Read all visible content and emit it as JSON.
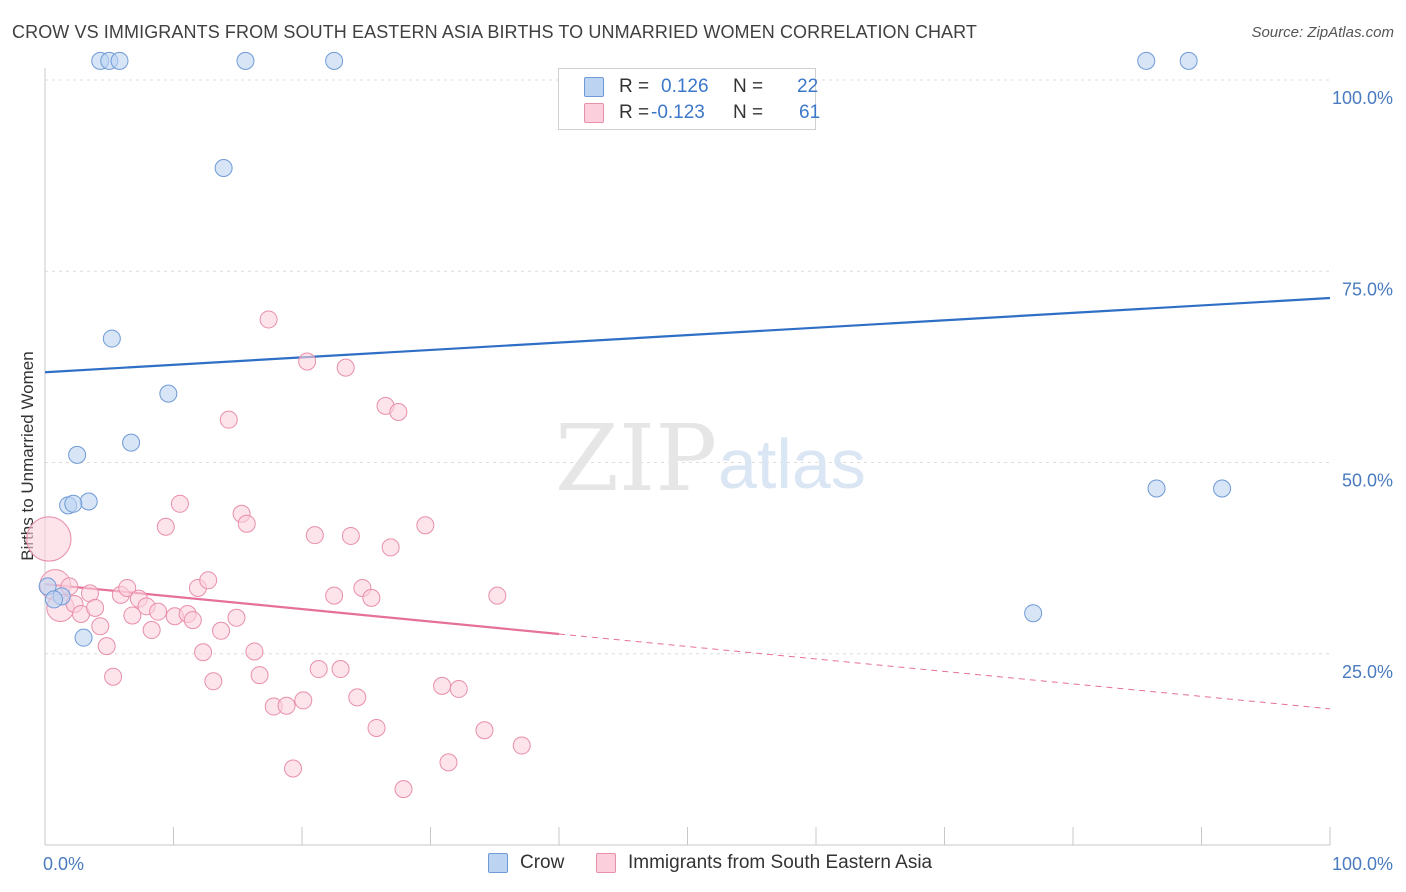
{
  "header": {
    "title": "CROW VS IMMIGRANTS FROM SOUTH EASTERN ASIA BIRTHS TO UNMARRIED WOMEN CORRELATION CHART",
    "source": "Source: ZipAtlas.com"
  },
  "watermark": {
    "zip": "ZIP",
    "atlas": "atlas"
  },
  "stats": {
    "rows": [
      {
        "r_label": "R =",
        "r_value": "0.126",
        "n_label": "N =",
        "n_value": "22"
      },
      {
        "r_label": "R =",
        "r_value": "-0.123",
        "n_label": "N =",
        "n_value": "61"
      }
    ]
  },
  "legend": {
    "crow": "Crow",
    "immigrants": "Immigrants from South Eastern Asia"
  },
  "colors": {
    "crow_fill": "#bcd3f2",
    "crow_stroke": "#6f9ad6",
    "crow_line": "#2f6fc6",
    "imm_fill": "#fbd0dc",
    "imm_stroke": "#e88faa",
    "imm_line": "#e5709a",
    "grid": "#dcdcdc",
    "tick_text": "#4a7bbf"
  },
  "chart_data": {
    "type": "scatter",
    "title": "CROW VS IMMIGRANTS FROM SOUTH EASTERN ASIA BIRTHS TO UNMARRIED WOMEN CORRELATION CHART",
    "xlabel": "",
    "ylabel": "Births to Unmarried Women",
    "xlim": [
      0,
      100
    ],
    "ylim": [
      0,
      100
    ],
    "x_tick_labels": [
      "0.0%",
      "100.0%"
    ],
    "y_ticks": [
      {
        "value": 100,
        "label": "100.0%"
      },
      {
        "value": 75,
        "label": "75.0%"
      },
      {
        "value": 50,
        "label": "50.0%"
      },
      {
        "value": 25,
        "label": "25.0%"
      }
    ],
    "legend_position": "bottom",
    "series": [
      {
        "name": "Crow",
        "r": 0.126,
        "n": 22,
        "trend": {
          "x0": 0,
          "y0": 61.8,
          "x1": 100,
          "y1": 71.5,
          "dashed_from": null
        },
        "points": [
          {
            "x": 4.3,
            "y": 102.5,
            "s": 1
          },
          {
            "x": 5.0,
            "y": 102.5,
            "s": 1
          },
          {
            "x": 5.8,
            "y": 102.5,
            "s": 1
          },
          {
            "x": 15.6,
            "y": 102.5,
            "s": 1
          },
          {
            "x": 22.5,
            "y": 102.5,
            "s": 1
          },
          {
            "x": 85.7,
            "y": 102.5,
            "s": 1
          },
          {
            "x": 89.0,
            "y": 102.5,
            "s": 1
          },
          {
            "x": 13.9,
            "y": 88.5,
            "s": 1
          },
          {
            "x": 5.2,
            "y": 66.2,
            "s": 1
          },
          {
            "x": 9.6,
            "y": 59.0,
            "s": 1
          },
          {
            "x": 6.7,
            "y": 52.6,
            "s": 1
          },
          {
            "x": 2.5,
            "y": 51.0,
            "s": 1
          },
          {
            "x": 3.4,
            "y": 44.9,
            "s": 1
          },
          {
            "x": 1.8,
            "y": 44.4,
            "s": 1
          },
          {
            "x": 2.2,
            "y": 44.6,
            "s": 1
          },
          {
            "x": 86.5,
            "y": 46.6,
            "s": 1
          },
          {
            "x": 91.6,
            "y": 46.6,
            "s": 1
          },
          {
            "x": 0.2,
            "y": 33.8,
            "s": 1
          },
          {
            "x": 1.3,
            "y": 32.5,
            "s": 1
          },
          {
            "x": 0.7,
            "y": 32.1,
            "s": 1
          },
          {
            "x": 3.0,
            "y": 27.1,
            "s": 1
          },
          {
            "x": 76.9,
            "y": 30.3,
            "s": 1
          }
        ]
      },
      {
        "name": "Immigrants from South Eastern Asia",
        "r": -0.123,
        "n": 61,
        "trend": {
          "x0": 0,
          "y0": 34.1,
          "x1": 100,
          "y1": 17.8,
          "solid_until": 40
        },
        "points": [
          {
            "x": 0.3,
            "y": 40.0,
            "s": 2.6
          },
          {
            "x": 0.8,
            "y": 34.0,
            "s": 1.8
          },
          {
            "x": 1.2,
            "y": 31.0,
            "s": 1.6
          },
          {
            "x": 1.9,
            "y": 33.8,
            "s": 1
          },
          {
            "x": 2.3,
            "y": 31.5,
            "s": 1
          },
          {
            "x": 2.8,
            "y": 30.2,
            "s": 1
          },
          {
            "x": 3.5,
            "y": 32.9,
            "s": 1
          },
          {
            "x": 3.9,
            "y": 31.0,
            "s": 1
          },
          {
            "x": 4.3,
            "y": 28.6,
            "s": 1
          },
          {
            "x": 4.8,
            "y": 26.0,
            "s": 1
          },
          {
            "x": 5.3,
            "y": 22.0,
            "s": 1
          },
          {
            "x": 5.9,
            "y": 32.7,
            "s": 1
          },
          {
            "x": 6.4,
            "y": 33.6,
            "s": 1
          },
          {
            "x": 6.8,
            "y": 30.0,
            "s": 1
          },
          {
            "x": 7.3,
            "y": 32.2,
            "s": 1
          },
          {
            "x": 7.9,
            "y": 31.2,
            "s": 1
          },
          {
            "x": 8.3,
            "y": 28.1,
            "s": 1
          },
          {
            "x": 8.8,
            "y": 30.5,
            "s": 1
          },
          {
            "x": 9.4,
            "y": 41.6,
            "s": 1
          },
          {
            "x": 10.1,
            "y": 29.9,
            "s": 1
          },
          {
            "x": 10.5,
            "y": 44.6,
            "s": 1
          },
          {
            "x": 11.1,
            "y": 30.2,
            "s": 1
          },
          {
            "x": 11.5,
            "y": 29.4,
            "s": 1
          },
          {
            "x": 11.9,
            "y": 33.6,
            "s": 1
          },
          {
            "x": 12.3,
            "y": 25.2,
            "s": 1
          },
          {
            "x": 12.7,
            "y": 34.6,
            "s": 1
          },
          {
            "x": 13.1,
            "y": 21.4,
            "s": 1
          },
          {
            "x": 13.7,
            "y": 28.0,
            "s": 1
          },
          {
            "x": 14.3,
            "y": 55.6,
            "s": 1
          },
          {
            "x": 14.9,
            "y": 29.7,
            "s": 1
          },
          {
            "x": 15.3,
            "y": 43.3,
            "s": 1
          },
          {
            "x": 15.7,
            "y": 42.0,
            "s": 1
          },
          {
            "x": 16.3,
            "y": 25.3,
            "s": 1
          },
          {
            "x": 16.7,
            "y": 22.2,
            "s": 1
          },
          {
            "x": 17.4,
            "y": 68.7,
            "s": 1
          },
          {
            "x": 17.8,
            "y": 18.1,
            "s": 1
          },
          {
            "x": 18.8,
            "y": 18.2,
            "s": 1
          },
          {
            "x": 19.3,
            "y": 10.0,
            "s": 1
          },
          {
            "x": 20.1,
            "y": 18.9,
            "s": 1
          },
          {
            "x": 20.4,
            "y": 63.2,
            "s": 1
          },
          {
            "x": 21.0,
            "y": 40.5,
            "s": 1
          },
          {
            "x": 21.3,
            "y": 23.0,
            "s": 1
          },
          {
            "x": 22.5,
            "y": 32.6,
            "s": 1
          },
          {
            "x": 23.0,
            "y": 23.0,
            "s": 1
          },
          {
            "x": 23.4,
            "y": 62.4,
            "s": 1
          },
          {
            "x": 23.8,
            "y": 40.4,
            "s": 1
          },
          {
            "x": 24.3,
            "y": 19.3,
            "s": 1
          },
          {
            "x": 24.7,
            "y": 33.6,
            "s": 1
          },
          {
            "x": 25.4,
            "y": 32.3,
            "s": 1
          },
          {
            "x": 25.8,
            "y": 15.3,
            "s": 1
          },
          {
            "x": 26.5,
            "y": 57.4,
            "s": 1
          },
          {
            "x": 26.9,
            "y": 38.9,
            "s": 1
          },
          {
            "x": 27.5,
            "y": 56.6,
            "s": 1
          },
          {
            "x": 27.9,
            "y": 7.3,
            "s": 1
          },
          {
            "x": 29.6,
            "y": 41.8,
            "s": 1
          },
          {
            "x": 30.9,
            "y": 20.8,
            "s": 1
          },
          {
            "x": 31.4,
            "y": 10.8,
            "s": 1
          },
          {
            "x": 32.2,
            "y": 20.4,
            "s": 1
          },
          {
            "x": 34.2,
            "y": 15.0,
            "s": 1
          },
          {
            "x": 35.2,
            "y": 32.6,
            "s": 1
          },
          {
            "x": 37.1,
            "y": 13.0,
            "s": 1
          }
        ]
      }
    ]
  }
}
